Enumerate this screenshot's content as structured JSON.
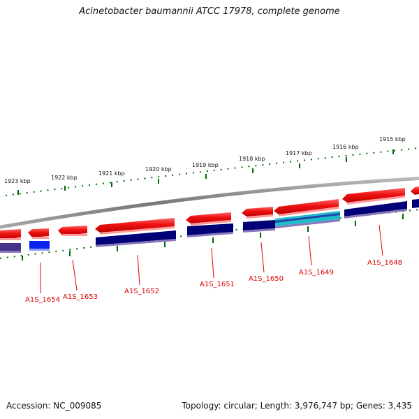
{
  "title": "Acinetobacter baumannii ATCC 17978, complete genome",
  "footer": {
    "accession": "Accession: NC_009085",
    "summary": "Topology: circular; Length: 3,976,747 bp; Genes: 3,435"
  },
  "scale_labels": [
    "1923 kbp",
    "1922 kbp",
    "1921 kbp",
    "1920 kbp",
    "1919 kbp",
    "1918 kbp",
    "1917 kbp",
    "1916 kbp",
    "1915 kbp"
  ],
  "gene_labels": [
    "A1S_1654",
    "A1S_1653",
    "A1S_1652",
    "A1S_1651",
    "A1S_1650",
    "A1S_1649",
    "A1S_1648"
  ],
  "colors": {
    "gene_red": "#ee1111",
    "gene_navy": "#000077",
    "gene_blue": "#0a22ee",
    "gene_cyan": "#22bbcc",
    "backbone": "#888888",
    "tick_green": "#006600",
    "label_red": "#dd0000"
  }
}
